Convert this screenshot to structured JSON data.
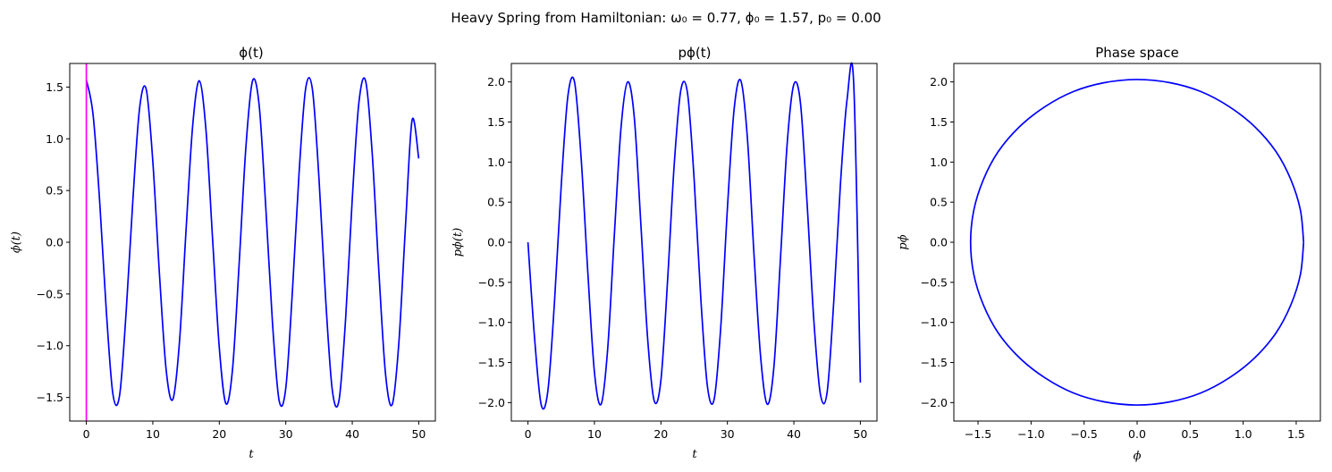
{
  "figure": {
    "suptitle": "Heavy Spring from Hamiltonian:   ω₀ = 0.77,   ϕ₀ = 1.57,  p₀ = 0.00",
    "line_color": "#0000ff",
    "marker_color": "#ff00ff"
  },
  "chart_data": [
    {
      "id": "phi",
      "type": "line",
      "title": "ϕ(t)",
      "xlabel": "t",
      "ylabel": "ϕ(t)",
      "xlim": [
        -2.5,
        52.5
      ],
      "ylim": [
        -1.728,
        1.728
      ],
      "xticks": [
        0,
        10,
        20,
        30,
        40,
        50
      ],
      "xtick_labels": [
        "0",
        "10",
        "20",
        "30",
        "40",
        "50"
      ],
      "yticks": [
        -1.5,
        -1.0,
        -0.5,
        0.0,
        0.5,
        1.0,
        1.5
      ],
      "ytick_labels": [
        "−1.5",
        "−1.0",
        "−0.5",
        "0.0",
        "0.5",
        "1.0",
        "1.5"
      ],
      "vline_x": 0,
      "series": [
        {
          "x": [
            0,
            1,
            2,
            3,
            4,
            5,
            6,
            7,
            8,
            9,
            10,
            11,
            12,
            13,
            14,
            15,
            16,
            17,
            18,
            19,
            20,
            21,
            22,
            23,
            24,
            25,
            26,
            27,
            28,
            29,
            30,
            31,
            32,
            33,
            34,
            35,
            36,
            37,
            38,
            39,
            40,
            41,
            42,
            43,
            44,
            45,
            46,
            47,
            48,
            49,
            50
          ],
          "y": [
            1.57,
            1.24,
            0.4,
            -0.66,
            -1.47,
            -1.48,
            -0.66,
            0.41,
            1.29,
            1.48,
            0.78,
            -0.31,
            -1.23,
            -1.52,
            -0.97,
            0.12,
            1.13,
            1.56,
            1.08,
            0.02,
            -1.02,
            -1.56,
            -1.22,
            -0.19,
            0.92,
            1.56,
            1.32,
            0.33,
            -0.78,
            -1.53,
            -1.41,
            -0.47,
            0.67,
            1.49,
            1.48,
            0.61,
            -0.55,
            -1.43,
            -1.53,
            -0.74,
            0.42,
            1.35,
            1.56,
            0.86,
            -0.28,
            -1.27,
            -1.57,
            -0.98,
            0.15,
            1.18,
            0.81
          ]
        }
      ]
    },
    {
      "id": "pphi",
      "type": "line",
      "title": "pϕ(t)",
      "xlabel": "t",
      "ylabel": "pϕ(t)",
      "xlim": [
        -2.5,
        52.5
      ],
      "ylim": [
        -2.23,
        2.23
      ],
      "xticks": [
        0,
        10,
        20,
        30,
        40,
        50
      ],
      "xtick_labels": [
        "0",
        "10",
        "20",
        "30",
        "40",
        "50"
      ],
      "yticks": [
        -2.0,
        -1.5,
        -1.0,
        -0.5,
        0.0,
        0.5,
        1.0,
        1.5,
        2.0
      ],
      "ytick_labels": [
        "−2.0",
        "−1.5",
        "−1.0",
        "−0.5",
        "0.0",
        "0.5",
        "1.0",
        "1.5",
        "2.0"
      ],
      "series": [
        {
          "x": [
            0,
            1,
            2,
            3,
            4,
            5,
            6,
            7,
            8,
            9,
            10,
            11,
            12,
            13,
            14,
            15,
            16,
            17,
            18,
            19,
            20,
            21,
            22,
            23,
            24,
            25,
            26,
            27,
            28,
            29,
            30,
            31,
            32,
            33,
            34,
            35,
            36,
            37,
            38,
            39,
            40,
            41,
            42,
            43,
            44,
            45,
            46,
            47,
            48,
            49,
            50
          ],
          "y": [
            0.0,
            -1.2,
            -2.03,
            -1.85,
            -0.73,
            0.7,
            1.82,
            2.0,
            1.05,
            -0.37,
            -1.62,
            -2.02,
            -1.32,
            0.1,
            1.43,
            2.0,
            1.55,
            0.2,
            -1.2,
            -1.98,
            -1.72,
            -0.48,
            0.97,
            1.9,
            1.86,
            0.78,
            -0.7,
            -1.8,
            -1.96,
            -1.06,
            0.42,
            1.65,
            2.02,
            1.31,
            -0.15,
            -1.43,
            -2.02,
            -1.55,
            -0.18,
            1.24,
            1.97,
            1.73,
            0.47,
            -0.97,
            -1.9,
            -1.87,
            -0.74,
            0.72,
            1.78,
            1.98,
            -1.75
          ]
        }
      ]
    },
    {
      "id": "phase",
      "type": "line",
      "title": "Phase space",
      "xlabel": "ϕ",
      "ylabel": "pϕ",
      "xlim": [
        -1.728,
        1.728
      ],
      "ylim": [
        -2.23,
        2.23
      ],
      "xticks": [
        -1.5,
        -1.0,
        -0.5,
        0.0,
        0.5,
        1.0,
        1.5
      ],
      "xtick_labels": [
        "−1.5",
        "−1.0",
        "−0.5",
        "0.0",
        "0.5",
        "1.0",
        "1.5"
      ],
      "yticks": [
        -2.0,
        -1.5,
        -1.0,
        -0.5,
        0.0,
        0.5,
        1.0,
        1.5,
        2.0
      ],
      "ytick_labels": [
        "−2.0",
        "−1.5",
        "−1.0",
        "−0.5",
        "0.0",
        "0.5",
        "1.0",
        "1.5",
        "2.0"
      ],
      "series": [
        {
          "x": [
            1.57,
            1.54,
            1.45,
            1.31,
            1.11,
            0.87,
            0.6,
            0.31,
            0.0,
            -0.31,
            -0.6,
            -0.87,
            -1.11,
            -1.31,
            -1.45,
            -1.54,
            -1.57,
            -1.54,
            -1.45,
            -1.31,
            -1.11,
            -0.87,
            -0.6,
            -0.31,
            0.0,
            0.31,
            0.6,
            0.87,
            1.11,
            1.31,
            1.45,
            1.54,
            1.57
          ],
          "y": [
            0.0,
            0.4,
            0.78,
            1.13,
            1.44,
            1.69,
            1.88,
            1.99,
            2.03,
            1.99,
            1.88,
            1.69,
            1.44,
            1.13,
            0.78,
            0.4,
            0.0,
            -0.4,
            -0.78,
            -1.13,
            -1.44,
            -1.69,
            -1.88,
            -1.99,
            -2.03,
            -1.99,
            -1.88,
            -1.69,
            -1.44,
            -1.13,
            -0.78,
            -0.4,
            0.0
          ]
        }
      ]
    }
  ]
}
